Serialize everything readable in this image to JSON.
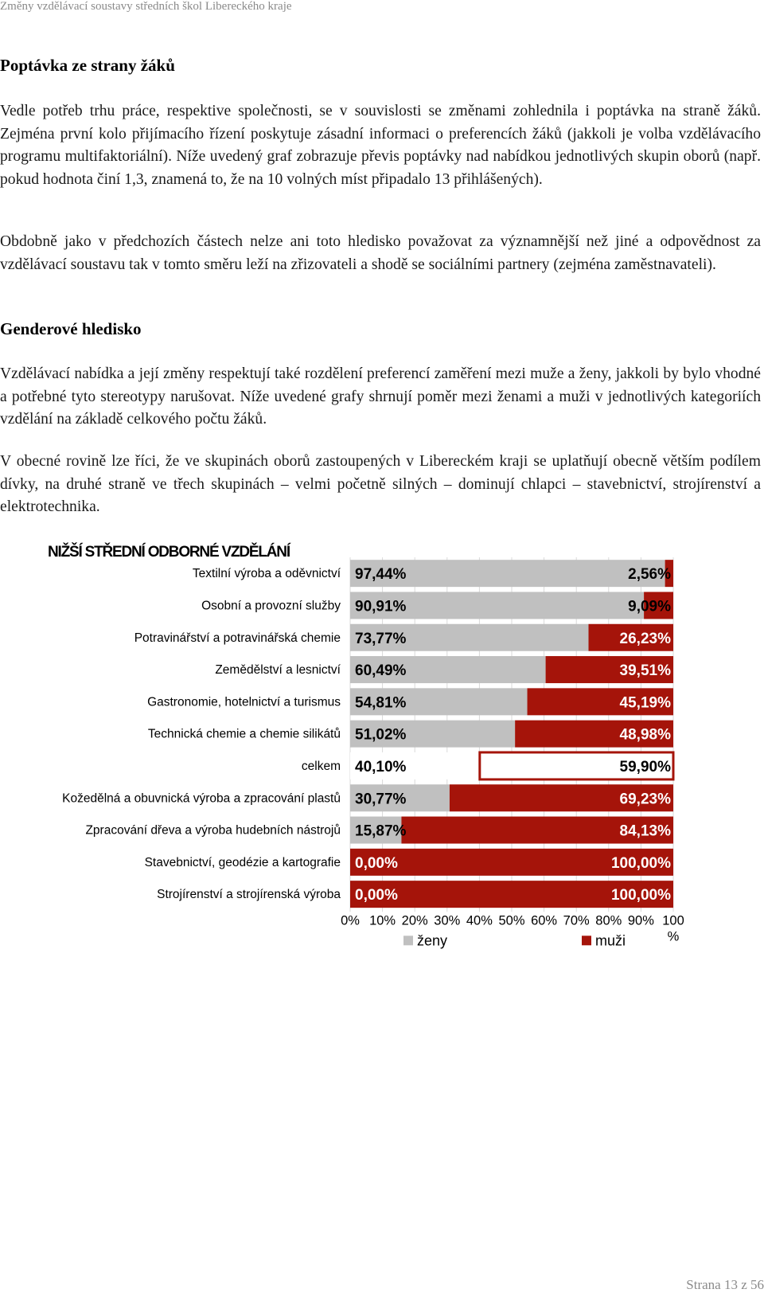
{
  "header": {
    "running_title": "Změny vzdělávací soustavy středních škol Libereckého kraje"
  },
  "sections": [
    {
      "heading": "Poptávka ze strany žáků",
      "paragraphs": [
        "Vedle potřeb trhu práce, respektive společnosti, se v souvislosti se změnami zohlednila i poptávka na straně žáků. Zejména první kolo přijímacího řízení poskytuje zásadní informaci o preferencích žáků (jakkoli je volba vzdělávacího programu multifaktoriální). Níže uvedený graf zobrazuje převis poptávky nad nabídkou jednotlivých skupin oborů (např. pokud hodnota činí 1,3, znamená to, že na 10 volných míst připadalo 13 přihlášených).",
        "Obdobně jako v předchozích částech nelze ani toto hledisko považovat za významnější než jiné a odpovědnost za vzdělávací soustavu tak v tomto směru leží na zřizovateli a shodě se sociálními partnery (zejména zaměstnavateli)."
      ]
    },
    {
      "heading": "Genderové hledisko",
      "paragraphs": [
        "Vzdělávací nabídka a její změny respektují také rozdělení preferencí zaměření mezi muže a ženy, jakkoli by bylo vhodné a potřebné tyto stereotypy narušovat. Níže uvedené grafy shrnují poměr mezi ženami a muži v jednotlivých kategoriích vzdělání na základě celkového počtu žáků.",
        "V obecné rovině lze říci, že ve skupinách oborů zastoupených v Libereckém kraji se uplatňují obecně větším podílem dívky, na druhé straně ve třech skupinách – velmi početně silných – dominují chlapci – stavebnictví, strojírenství a elektrotechnika."
      ]
    }
  ],
  "chart_data": {
    "type": "bar",
    "orientation": "horizontal",
    "stacked": "percent",
    "title": "NIŽŠÍ STŘEDNÍ ODBORNÉ VZDĚLÁNÍ",
    "categories": [
      "Textilní výroba a oděvnictví",
      "Osobní a provozní služby",
      "Potravinářství a potravinářská chemie",
      "Zemědělství a lesnictví",
      "Gastronomie, hotelnictví a turismus",
      "Technická chemie a chemie silikátů",
      "celkem",
      "Kožedělná a obuvnická výroba a zpracování plastů",
      "Zpracování dřeva a výroba hudebních nástrojů",
      "Stavebnictví, geodézie a kartografie",
      "Strojírenství a strojírenská výroba"
    ],
    "series": [
      {
        "name": "ženy",
        "color": "#c0c0c0",
        "values": [
          97.44,
          90.91,
          73.77,
          60.49,
          54.81,
          51.02,
          40.1,
          30.77,
          15.87,
          0.0,
          0.0
        ],
        "labels": [
          "97,44%",
          "90,91%",
          "73,77%",
          "60,49%",
          "54,81%",
          "51,02%",
          "40,10%",
          "30,77%",
          "15,87%",
          "0,00%",
          "0,00%"
        ]
      },
      {
        "name": "muži",
        "color": "#a5140a",
        "values": [
          2.56,
          9.09,
          26.23,
          39.51,
          45.19,
          48.98,
          59.9,
          69.23,
          84.13,
          100.0,
          100.0
        ],
        "labels": [
          "2,56%",
          "9,09%",
          "26,23%",
          "39,51%",
          "45,19%",
          "48,98%",
          "59,90%",
          "69,23%",
          "84,13%",
          "100,00%",
          "100,00%"
        ]
      }
    ],
    "highlighted_category": "celkem",
    "x_ticks": [
      "0%",
      "10%",
      "20%",
      "30%",
      "40%",
      "50%",
      "60%",
      "70%",
      "80%",
      "90%",
      "100%"
    ],
    "xlim": [
      0,
      100
    ],
    "grid": true,
    "legend_position": "bottom"
  },
  "footer": {
    "page_label": "Strana 13 z 56"
  }
}
